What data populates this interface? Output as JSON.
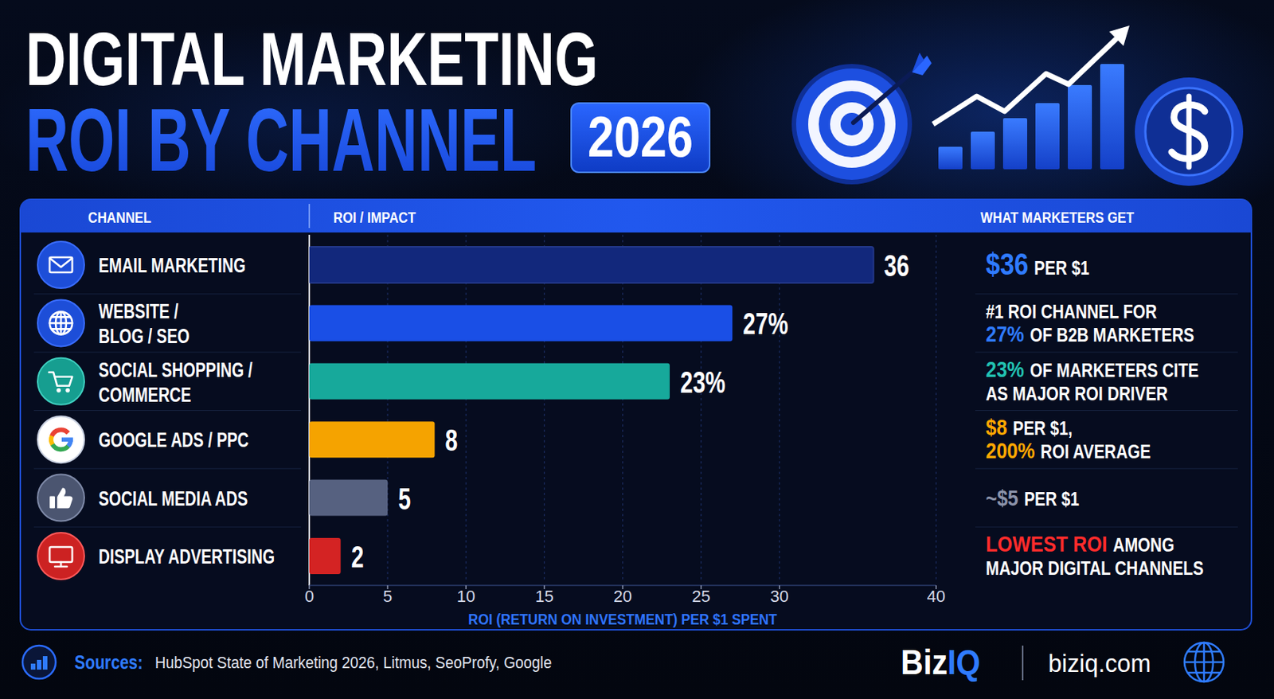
{
  "chart_data": {
    "type": "bar",
    "orientation": "horizontal",
    "title": "DIGITAL MARKETING",
    "subtitle": "ROI BY CHANNEL",
    "badge": "2026",
    "column_headers": [
      "CHANNEL",
      "ROI / IMPACT",
      "WHAT MARKETERS GET"
    ],
    "categories": [
      "EMAIL MARKETING",
      "WEBSITE / BLOG / SEO",
      "SOCIAL SHOPPING / COMMERCE",
      "GOOGLE ADS / PPC",
      "SOCIAL MEDIA ADS",
      "DISPLAY ADVERTISING"
    ],
    "values": [
      36,
      27,
      23,
      8,
      5,
      2
    ],
    "value_labels": [
      "36",
      "27%",
      "23%",
      "8",
      "5",
      "2"
    ],
    "colors": [
      "#12287c",
      "#1a4fe6",
      "#17a99b",
      "#f5a300",
      "#566180",
      "#d42323"
    ],
    "annotations": [
      [
        [
          "$36",
          "PER $1"
        ]
      ],
      [
        [
          "#1 ROI CHANNEL FOR"
        ],
        [
          "27%",
          "OF B2B MARKETERS"
        ]
      ],
      [
        [
          "23%",
          "OF MARKETERS CITE"
        ],
        [
          "AS MAJOR ROI DRIVER"
        ]
      ],
      [
        [
          "$8",
          "PER $1,"
        ],
        [
          "200%",
          "ROI AVERAGE"
        ]
      ],
      [
        [
          "~$5",
          "PER $1"
        ]
      ],
      [
        [
          "LOWEST ROI",
          "AMONG"
        ],
        [
          "MAJOR DIGITAL CHANNELS"
        ]
      ]
    ],
    "xlabel": "ROI (RETURN ON INVESTMENT) PER $1 SPENT",
    "xlim": [
      0,
      40
    ],
    "xticks": [
      0,
      5,
      10,
      15,
      20,
      25,
      30,
      40
    ],
    "grid": true,
    "data_labels": true,
    "sources_label": "Sources:",
    "sources": "HubSpot State of Marketing 2026, Litmus, SeoProfy, Google",
    "brand": "BizIQ",
    "website": "biziq.com"
  }
}
